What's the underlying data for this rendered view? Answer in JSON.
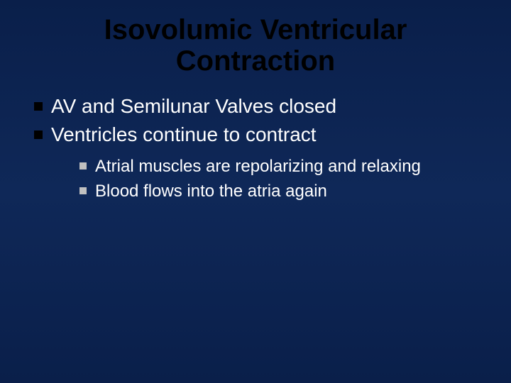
{
  "slide": {
    "title": "Isovolumic Ventricular Contraction",
    "background_gradient": [
      "#0a1f4a",
      "#0f2858",
      "#0a1f4a"
    ],
    "title_color": "#000000",
    "title_fontsize": 40,
    "text_color": "#ffffff",
    "main_bullets": [
      "AV and Semilunar Valves closed",
      "Ventricles continue to contract"
    ],
    "main_bullet_fontsize": 28,
    "main_bullet_marker_color": "#000000",
    "sub_bullets": [
      "Atrial muscles are repolarizing and relaxing",
      "Blood flows into the atria again"
    ],
    "sub_bullet_fontsize": 24,
    "sub_bullet_marker_color": "#c0c0c0"
  }
}
